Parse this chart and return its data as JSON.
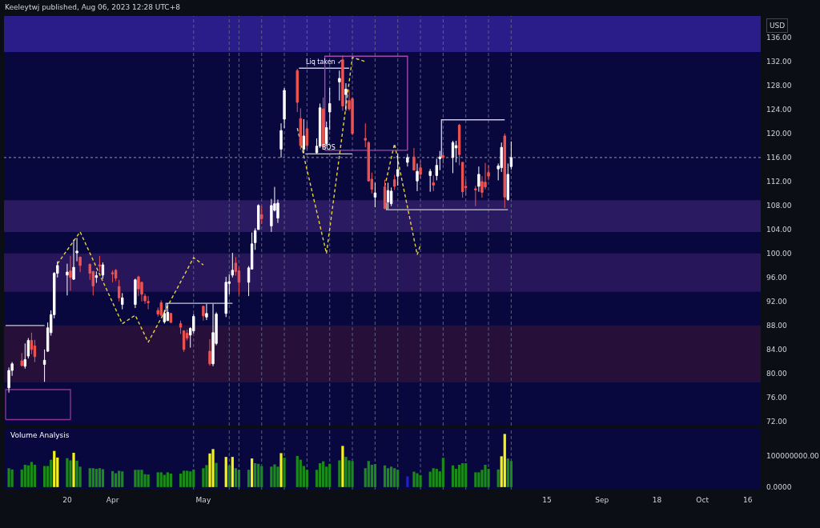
{
  "chart_data": [
    {
      "type": "candlestick",
      "x": [
        "2023-03-02",
        "2023-03-03",
        "2023-03-06",
        "2023-03-07",
        "2023-03-08",
        "2023-03-09",
        "2023-03-10",
        "2023-03-13",
        "2023-03-14",
        "2023-03-15",
        "2023-03-16",
        "2023-03-17",
        "2023-03-20",
        "2023-03-21",
        "2023-03-22",
        "2023-03-23",
        "2023-03-24",
        "2023-03-27",
        "2023-03-28",
        "2023-03-29",
        "2023-03-30",
        "2023-03-31",
        "2023-04-03",
        "2023-04-04",
        "2023-04-05",
        "2023-04-06",
        "2023-04-10",
        "2023-04-11",
        "2023-04-12",
        "2023-04-13",
        "2023-04-14",
        "2023-04-17",
        "2023-04-18",
        "2023-04-19",
        "2023-04-20",
        "2023-04-21",
        "2023-04-24",
        "2023-04-25",
        "2023-04-26",
        "2023-04-27",
        "2023-04-28",
        "2023-05-01",
        "2023-05-02",
        "2023-05-03",
        "2023-05-04",
        "2023-05-05",
        "2023-05-08",
        "2023-05-09",
        "2023-05-10",
        "2023-05-11",
        "2023-05-12",
        "2023-05-15",
        "2023-05-16",
        "2023-05-17",
        "2023-05-18",
        "2023-05-19",
        "2023-05-22",
        "2023-05-23",
        "2023-05-24",
        "2023-05-25",
        "2023-05-26",
        "2023-05-30",
        "2023-05-31",
        "2023-06-01",
        "2023-06-02",
        "2023-06-05",
        "2023-06-06",
        "2023-06-07",
        "2023-06-08",
        "2023-06-09",
        "2023-06-12",
        "2023-06-13",
        "2023-06-14",
        "2023-06-15",
        "2023-06-16",
        "2023-06-20",
        "2023-06-21",
        "2023-06-22",
        "2023-06-23",
        "2023-06-26",
        "2023-06-27",
        "2023-06-28",
        "2023-06-29",
        "2023-06-30",
        "2023-07-03",
        "2023-07-05",
        "2023-07-06",
        "2023-07-07",
        "2023-07-10",
        "2023-07-11",
        "2023-07-12",
        "2023-07-13",
        "2023-07-14",
        "2023-07-17",
        "2023-07-18",
        "2023-07-19",
        "2023-07-20",
        "2023-07-21",
        "2023-07-24",
        "2023-07-25",
        "2023-07-26",
        "2023-07-27",
        "2023-07-28",
        "2023-07-31",
        "2023-08-01",
        "2023-08-02",
        "2023-08-03",
        "2023-08-04"
      ],
      "ohlc": [
        [
          77.6,
          81.0,
          76.8,
          80.5
        ],
        [
          80.5,
          81.9,
          79.6,
          81.6
        ],
        [
          82.1,
          83.4,
          81.2,
          81.3
        ],
        [
          81.2,
          85.0,
          80.8,
          82.3
        ],
        [
          82.9,
          85.9,
          82.5,
          85.5
        ],
        [
          85.5,
          86.8,
          83.2,
          84.0
        ],
        [
          84.6,
          85.6,
          81.9,
          82.8
        ],
        [
          81.5,
          84.0,
          78.6,
          82.2
        ],
        [
          83.7,
          88.5,
          83.6,
          87.6
        ],
        [
          86.8,
          90.5,
          86.3,
          89.8
        ],
        [
          89.8,
          96.9,
          89.2,
          96.7
        ],
        [
          96.7,
          98.7,
          96.0,
          98.0
        ],
        [
          96.4,
          98.3,
          93.0,
          96.9
        ],
        [
          97.1,
          99.6,
          93.8,
          96.0
        ],
        [
          95.7,
          102.3,
          95.6,
          97.7
        ],
        [
          100.1,
          102.6,
          98.7,
          100.4
        ],
        [
          99.4,
          99.5,
          96.9,
          98.0
        ],
        [
          98.2,
          98.3,
          95.6,
          96.7
        ],
        [
          97.0,
          97.1,
          93.0,
          94.6
        ],
        [
          96.0,
          97.0,
          95.1,
          96.3
        ],
        [
          98.1,
          99.6,
          96.9,
          97.9
        ],
        [
          96.4,
          98.5,
          95.8,
          98.1
        ],
        [
          96.8,
          97.2,
          95.2,
          96.6
        ],
        [
          97.2,
          97.4,
          95.4,
          95.9
        ],
        [
          94.5,
          95.6,
          92.0,
          92.6
        ],
        [
          91.5,
          93.4,
          90.7,
          92.6
        ],
        [
          91.5,
          95.8,
          90.9,
          95.6
        ],
        [
          96.1,
          96.3,
          92.9,
          94.1
        ],
        [
          95.2,
          95.3,
          92.0,
          93.2
        ],
        [
          92.9,
          93.3,
          91.6,
          92.1
        ],
        [
          92.0,
          92.9,
          90.7,
          91.8
        ],
        [
          90.5,
          91.0,
          89.5,
          89.9
        ],
        [
          91.8,
          92.2,
          89.6,
          89.7
        ],
        [
          88.6,
          90.6,
          88.3,
          90.0
        ],
        [
          88.8,
          91.7,
          88.8,
          90.2
        ],
        [
          90.0,
          90.1,
          88.4,
          88.5
        ],
        [
          88.3,
          88.8,
          86.6,
          87.7
        ],
        [
          87.1,
          87.2,
          83.6,
          84.0
        ],
        [
          86.7,
          87.3,
          85.5,
          85.9
        ],
        [
          86.4,
          87.7,
          84.3,
          87.5
        ],
        [
          87.1,
          89.9,
          86.7,
          89.5
        ],
        [
          91.2,
          91.3,
          88.8,
          89.6
        ],
        [
          89.4,
          91.6,
          88.9,
          90.0
        ],
        [
          83.7,
          85.7,
          81.3,
          81.6
        ],
        [
          81.6,
          91.6,
          81.2,
          86.8
        ],
        [
          85.0,
          90.2,
          84.7,
          89.9
        ],
        [
          90.0,
          96.1,
          89.4,
          95.2
        ],
        [
          95.0,
          96.5,
          93.2,
          95.3
        ],
        [
          96.4,
          100.1,
          96.0,
          97.2
        ],
        [
          98.4,
          99.4,
          96.3,
          97.0
        ],
        [
          97.1,
          97.7,
          93.1,
          95.2
        ],
        [
          95.2,
          97.9,
          92.9,
          97.6
        ],
        [
          97.4,
          103.5,
          97.4,
          101.6
        ],
        [
          101.8,
          104.2,
          100.6,
          103.8
        ],
        [
          104.0,
          108.2,
          104.0,
          108.0
        ],
        [
          106.5,
          107.9,
          104.9,
          105.8
        ],
        [
          104.6,
          109.1,
          103.6,
          108.0
        ],
        [
          107.2,
          111.1,
          107.0,
          108.3
        ],
        [
          105.9,
          109.0,
          105.1,
          108.4
        ],
        [
          117.4,
          121.7,
          116.0,
          120.5
        ],
        [
          122.4,
          127.6,
          120.9,
          127.2
        ],
        [
          130.5,
          130.8,
          123.6,
          125.2
        ],
        [
          122.5,
          124.2,
          117.3,
          118.0
        ],
        [
          117.4,
          122.4,
          116.7,
          119.6
        ],
        [
          120.8,
          122.0,
          117.3,
          118.0
        ],
        [
          116.8,
          119.2,
          116.7,
          117.9
        ],
        [
          117.9,
          125.0,
          117.6,
          124.3
        ],
        [
          124.1,
          126.0,
          117.5,
          117.8
        ],
        [
          118.3,
          122.0,
          118.0,
          121.0
        ],
        [
          123.6,
          127.6,
          120.6,
          125.0
        ],
        [
          128.6,
          130.5,
          125.5,
          129.2
        ],
        [
          132.3,
          133.0,
          123.8,
          124.6
        ],
        [
          126.5,
          128.4,
          123.8,
          127.4
        ],
        [
          125.5,
          127.3,
          123.8,
          124.1
        ],
        [
          125.8,
          126.1,
          119.7,
          120.0
        ],
        [
          119.2,
          121.7,
          117.7,
          118.9
        ],
        [
          118.5,
          118.7,
          112.0,
          112.1
        ],
        [
          112.4,
          113.5,
          110.0,
          110.7
        ],
        [
          109.4,
          111.8,
          107.7,
          110.1
        ],
        [
          111.1,
          112.3,
          107.4,
          107.5
        ],
        [
          108.6,
          111.8,
          107.4,
          110.5
        ],
        [
          108.3,
          111.0,
          107.9,
          110.4
        ],
        [
          112.3,
          113.1,
          110.6,
          111.2
        ],
        [
          112.9,
          116.7,
          111.3,
          114.0
        ],
        [
          115.2,
          116.6,
          114.5,
          116.0
        ],
        [
          116.1,
          117.6,
          113.9,
          113.9
        ],
        [
          112.1,
          115.0,
          110.4,
          113.7
        ],
        [
          114.3,
          115.5,
          112.5,
          113.2
        ],
        [
          113.0,
          114.1,
          110.3,
          113.7
        ],
        [
          111.8,
          113.0,
          110.4,
          111.4
        ],
        [
          113.0,
          115.8,
          112.2,
          114.7
        ],
        [
          115.8,
          117.1,
          113.9,
          116.1
        ],
        [
          116.3,
          117.0,
          115.0,
          116.0
        ],
        [
          116.0,
          118.8,
          113.4,
          118.5
        ],
        [
          117.6,
          118.8,
          115.2,
          118.0
        ],
        [
          121.4,
          121.6,
          114.7,
          116.5
        ],
        [
          115.2,
          115.3,
          109.3,
          110.3
        ],
        [
          111.2,
          112.4,
          109.7,
          111.0
        ],
        [
          110.8,
          111.3,
          107.9,
          110.6
        ],
        [
          111.2,
          114.5,
          110.3,
          113.2
        ],
        [
          112.0,
          112.9,
          109.3,
          110.2
        ],
        [
          111.9,
          115.1,
          110.7,
          111.1
        ],
        [
          113.5,
          114.7,
          112.2,
          112.9
        ],
        [
          114.1,
          115.0,
          112.2,
          114.6
        ],
        [
          114.3,
          118.5,
          113.6,
          117.7
        ],
        [
          119.6,
          120.0,
          107.6,
          109.4
        ],
        [
          109.0,
          115.0,
          108.8,
          113.2
        ],
        [
          114.5,
          118.7,
          114.0,
          116.0
        ]
      ],
      "colors": [
        "#ffffff",
        "#ffffff",
        "#ef5350",
        "#ffffff",
        "#ffffff",
        "#ef5350",
        "#ef5350",
        "#ffffff",
        "#ffffff",
        "#ffffff",
        "#ffffff",
        "#ffffff",
        "#ffffff",
        "#ef5350",
        "#ffffff",
        "#ffffff",
        "#ef5350",
        "#ef5350",
        "#ef5350",
        "#ffffff",
        "#ef5350",
        "#ffffff",
        "#ef5350",
        "#ef5350",
        "#ef5350",
        "#ffffff",
        "#ffffff",
        "#ef5350",
        "#ef5350",
        "#ef5350",
        "#ef5350",
        "#ef5350",
        "#ef5350",
        "#ffffff",
        "#ffffff",
        "#ef5350",
        "#ef5350",
        "#ef5350",
        "#ef5350",
        "#ffffff",
        "#ffffff",
        "#ef5350",
        "#ffffff",
        "#ef5350",
        "#ffffff",
        "#ffffff",
        "#ffffff",
        "#ffffff",
        "#ffffff",
        "#ef5350",
        "#ef5350",
        "#ffffff",
        "#ffffff",
        "#ffffff",
        "#ffffff",
        "#ef5350",
        "#ffffff",
        "#ffffff",
        "#ffffff",
        "#ffffff",
        "#ffffff",
        "#ef5350",
        "#ef5350",
        "#ffffff",
        "#ef5350",
        "#ffffff",
        "#ffffff",
        "#ef5350",
        "#ffffff",
        "#ffffff",
        "#ffffff",
        "#ef5350",
        "#ffffff",
        "#ef5350",
        "#ef5350",
        "#ef5350",
        "#ef5350",
        "#ef5350",
        "#ffffff",
        "#ef5350",
        "#ffffff",
        "#ffffff",
        "#ef5350",
        "#ffffff",
        "#ffffff",
        "#ef5350",
        "#ffffff",
        "#ef5350",
        "#ffffff",
        "#ef5350",
        "#ffffff",
        "#ffffff",
        "#ef5350",
        "#ffffff",
        "#ffffff",
        "#ef5350",
        "#ef5350",
        "#ef5350",
        "#ef5350",
        "#ffffff",
        "#ef5350",
        "#ef5350",
        "#ef5350",
        "#ffffff",
        "#ffffff",
        "#ef5350",
        "#ffffff",
        "#ffffff"
      ],
      "xlim": [
        "2023-02-28T12:00",
        "2023-10-20"
      ],
      "ylim": [
        71.3,
        139.6
      ],
      "yticks": [
        {
          "value": 72,
          "label": "72.00"
        },
        {
          "value": 76,
          "label": "76.00"
        },
        {
          "value": 80,
          "label": "80.00"
        },
        {
          "value": 84,
          "label": "84.00"
        },
        {
          "value": 88,
          "label": "88.00"
        },
        {
          "value": 92,
          "label": "92.00"
        },
        {
          "value": 96,
          "label": "96.00"
        },
        {
          "value": 100,
          "label": "100.00"
        },
        {
          "value": 104,
          "label": "104.00"
        },
        {
          "value": 108,
          "label": "108.00"
        },
        {
          "value": 112,
          "label": "112.00"
        },
        {
          "value": 116,
          "label": "116.00"
        },
        {
          "value": 120,
          "label": "120.00"
        },
        {
          "value": 124,
          "label": "124.00"
        },
        {
          "value": 128,
          "label": "128.00"
        },
        {
          "value": 132,
          "label": "132.00"
        },
        {
          "value": 136,
          "label": "136.00"
        }
      ],
      "ylabel": "USD",
      "tick_labels": "y",
      "annotations": [
        "Keeleytwj published, Aug 06, 2023 12:28 UTC+8"
      ],
      "bands": [
        {
          "axis": "y",
          "from": 133.6,
          "to": 139.6,
          "color": "#2a1d8a"
        },
        {
          "axis": "y",
          "from": 103.6,
          "to": 108.9,
          "color": "#2a1a62"
        },
        {
          "axis": "y",
          "from": 93.6,
          "to": 100.0,
          "color": "#28165a"
        },
        {
          "axis": "y",
          "from": 78.5,
          "to": 88.0,
          "color": "#26103a"
        }
      ],
      "ref_lines": [
        {
          "axis": "x",
          "value": "2023-04-28",
          "color": "#5d6180",
          "line_style": "dashed"
        },
        {
          "axis": "x",
          "value": "2023-05-09",
          "color": "#5d6180",
          "line_style": "dashed"
        },
        {
          "axis": "x",
          "value": "2023-05-12",
          "color": "#5d6180",
          "line_style": "dashed"
        },
        {
          "axis": "x",
          "value": "2023-05-19",
          "color": "#5d6180",
          "line_style": "dashed"
        },
        {
          "axis": "x",
          "value": "2023-05-26",
          "color": "#5d6180",
          "line_style": "dashed"
        },
        {
          "axis": "x",
          "value": "2023-06-02",
          "color": "#5d6180",
          "line_style": "dashed"
        },
        {
          "axis": "x",
          "value": "2023-06-09",
          "color": "#5d6180",
          "line_style": "dashed"
        },
        {
          "axis": "x",
          "value": "2023-06-16",
          "color": "#5d6180",
          "line_style": "dashed"
        },
        {
          "axis": "x",
          "value": "2023-06-23",
          "color": "#5d6180",
          "line_style": "dashed"
        },
        {
          "axis": "x",
          "value": "2023-06-30",
          "color": "#5d6180",
          "line_style": "dashed"
        },
        {
          "axis": "x",
          "value": "2023-07-07",
          "color": "#5d6180",
          "line_style": "dashed"
        },
        {
          "axis": "x",
          "value": "2023-07-14",
          "color": "#5d6180",
          "line_style": "dashed"
        },
        {
          "axis": "x",
          "value": "2023-07-21",
          "color": "#5d6180",
          "line_style": "dashed"
        },
        {
          "axis": "x",
          "value": "2023-07-28",
          "color": "#5d6180",
          "line_style": "dashed"
        },
        {
          "axis": "x",
          "value": "2023-08-04",
          "color": "#5d6180",
          "line_style": "dashed"
        },
        {
          "axis": "y",
          "value": 116.0,
          "color": "#9598a1",
          "line_style": "dotted"
        }
      ],
      "series": [
        {
          "type": "line",
          "color": "#e6d43c",
          "line_style": "dashed",
          "x": [
            "2023-03-17",
            "2023-03-24",
            "2023-04-06",
            "2023-04-10",
            "2023-04-14",
            "2023-04-28",
            "2023-05-01"
          ],
          "values": [
            98.3,
            103.6,
            88.3,
            89.7,
            85.2,
            99.3,
            98.1
          ]
        },
        {
          "type": "line",
          "color": "#e6d43c",
          "line_style": "dashed",
          "x": [
            "2023-05-30",
            "2023-06-08",
            "2023-06-16",
            "2023-06-20"
          ],
          "values": [
            120.9,
            100.0,
            132.7,
            132.0
          ]
        },
        {
          "type": "line",
          "color": "#e6d43c",
          "line_style": "dashed",
          "x": [
            "2023-06-26",
            "2023-06-29",
            "2023-07-06",
            "2023-07-07"
          ],
          "values": [
            111.2,
            118.3,
            99.8,
            101.4
          ]
        },
        {
          "type": "line",
          "name": "Liq taken ✓",
          "color": "#c8c8d8",
          "line_style": "solid",
          "x": [
            "2023-05-30T12:00",
            "2023-06-15"
          ],
          "values": [
            130.9,
            130.9
          ]
        },
        {
          "type": "line",
          "name": "BOS",
          "color": "#c8c8d8",
          "line_style": "solid",
          "x": [
            "2023-06-01T12:00",
            "2023-06-16"
          ],
          "values": [
            116.6,
            116.6
          ]
        },
        {
          "type": "line",
          "color": "#c8c8d8",
          "line_style": "solid",
          "x": [
            "2023-07-13T12:00",
            "2023-07-13T12:00",
            "2023-08-02"
          ],
          "values": [
            116.0,
            122.3,
            122.3
          ]
        },
        {
          "type": "line",
          "color": "#c8c8d8",
          "line_style": "solid",
          "x": [
            "2023-06-26T12:00",
            "2023-06-26T12:00",
            "2023-08-03"
          ],
          "values": [
            108.5,
            107.3,
            107.3
          ]
        },
        {
          "type": "line",
          "color": "#c8c8d8",
          "line_style": "solid",
          "x": [
            "2023-03-01",
            "2023-03-13"
          ],
          "values": [
            88.0,
            88.0
          ]
        },
        {
          "type": "line",
          "color": "#c8c8d8",
          "line_style": "solid",
          "x": [
            "2023-04-19T12:00",
            "2023-04-19T12:00",
            "2023-05-10"
          ],
          "values": [
            90.3,
            91.7,
            91.7
          ]
        },
        {
          "type": "line",
          "color": "#a346b0",
          "line_style": "solid",
          "x": [
            "2023-06-07T12:00",
            "2023-06-07T12:00",
            "2023-07-03",
            "2023-07-03"
          ],
          "values": [
            117.2,
            132.9,
            132.9,
            117.2
          ]
        },
        {
          "type": "line",
          "color": "#a346b0",
          "line_style": "solid",
          "x": [
            "2023-06-07T12:00",
            "2023-07-03"
          ],
          "values": [
            117.2,
            117.2
          ]
        },
        {
          "type": "line",
          "color": "#8a3590",
          "line_style": "solid",
          "x": [
            "2023-03-01",
            "2023-03-01",
            "2023-03-21",
            "2023-03-21"
          ],
          "values": [
            72.3,
            77.3,
            77.3,
            72.3
          ]
        },
        {
          "type": "line",
          "color": "#8a3590",
          "line_style": "solid",
          "x": [
            "2023-03-01",
            "2023-03-21"
          ],
          "values": [
            72.3,
            72.3
          ]
        }
      ]
    },
    {
      "type": "bar",
      "title": "Volume Analysis",
      "x": [
        "2023-03-02",
        "2023-03-03",
        "2023-03-06",
        "2023-03-07",
        "2023-03-08",
        "2023-03-09",
        "2023-03-10",
        "2023-03-13",
        "2023-03-14",
        "2023-03-15",
        "2023-03-16",
        "2023-03-17",
        "2023-03-20",
        "2023-03-21",
        "2023-03-22",
        "2023-03-23",
        "2023-03-24",
        "2023-03-27",
        "2023-03-28",
        "2023-03-29",
        "2023-03-30",
        "2023-03-31",
        "2023-04-03",
        "2023-04-04",
        "2023-04-05",
        "2023-04-06",
        "2023-04-10",
        "2023-04-11",
        "2023-04-12",
        "2023-04-13",
        "2023-04-14",
        "2023-04-17",
        "2023-04-18",
        "2023-04-19",
        "2023-04-20",
        "2023-04-21",
        "2023-04-24",
        "2023-04-25",
        "2023-04-26",
        "2023-04-27",
        "2023-04-28",
        "2023-05-01",
        "2023-05-02",
        "2023-05-03",
        "2023-05-04",
        "2023-05-05",
        "2023-05-08",
        "2023-05-09",
        "2023-05-10",
        "2023-05-11",
        "2023-05-12",
        "2023-05-15",
        "2023-05-16",
        "2023-05-17",
        "2023-05-18",
        "2023-05-19",
        "2023-05-22",
        "2023-05-23",
        "2023-05-24",
        "2023-05-25",
        "2023-05-26",
        "2023-05-30",
        "2023-05-31",
        "2023-06-01",
        "2023-06-02",
        "2023-06-05",
        "2023-06-06",
        "2023-06-07",
        "2023-06-08",
        "2023-06-09",
        "2023-06-12",
        "2023-06-13",
        "2023-06-14",
        "2023-06-15",
        "2023-06-16",
        "2023-06-20",
        "2023-06-21",
        "2023-06-22",
        "2023-06-23",
        "2023-06-26",
        "2023-06-27",
        "2023-06-28",
        "2023-06-29",
        "2023-06-30",
        "2023-07-03",
        "2023-07-05",
        "2023-07-06",
        "2023-07-07",
        "2023-07-10",
        "2023-07-11",
        "2023-07-12",
        "2023-07-13",
        "2023-07-14",
        "2023-07-17",
        "2023-07-18",
        "2023-07-19",
        "2023-07-20",
        "2023-07-21",
        "2023-07-24",
        "2023-07-25",
        "2023-07-26",
        "2023-07-27",
        "2023-07-28",
        "2023-07-31",
        "2023-08-01",
        "2023-08-02",
        "2023-08-03",
        "2023-08-04"
      ],
      "values": [
        60000000,
        56000000,
        56000000,
        71000000,
        69000000,
        80000000,
        71000000,
        67000000,
        67000000,
        87000000,
        115000000,
        94000000,
        92000000,
        85000000,
        109000000,
        84000000,
        65000000,
        60000000,
        60000000,
        58000000,
        60000000,
        57000000,
        51000000,
        44000000,
        52000000,
        50000000,
        55000000,
        55000000,
        55000000,
        41000000,
        40000000,
        47000000,
        47000000,
        39000000,
        47000000,
        43000000,
        43000000,
        52000000,
        52000000,
        50000000,
        56000000,
        60000000,
        70000000,
        107000000,
        121000000,
        77000000,
        96000000,
        69000000,
        96000000,
        60000000,
        55000000,
        55000000,
        91000000,
        76000000,
        74000000,
        67000000,
        65000000,
        72000000,
        65000000,
        108000000,
        93000000,
        99000000,
        87000000,
        67000000,
        55000000,
        55000000,
        76000000,
        82000000,
        65000000,
        74000000,
        85000000,
        131000000,
        96000000,
        85000000,
        83000000,
        60000000,
        83000000,
        71000000,
        73000000,
        69000000,
        60000000,
        65000000,
        60000000,
        55000000,
        34000000,
        49000000,
        44000000,
        38000000,
        49000000,
        60000000,
        58000000,
        50000000,
        93000000,
        69000000,
        58000000,
        71000000,
        76000000,
        76000000,
        47000000,
        47000000,
        55000000,
        71000000,
        58000000,
        56000000,
        98000000,
        169000000,
        91000000,
        83000000
      ],
      "colors": [
        "#1b8a1b",
        "#1b8a1b",
        "#1b8a1b",
        "#1b8a1b",
        "#1b8a1b",
        "#1b8a1b",
        "#1b8a1b",
        "#1b8a1b",
        "#1b8a1b",
        "#1b8a1b",
        "#f2f21a",
        "#f2f21a",
        "#1b8a1b",
        "#1b8a1b",
        "#f2f21a",
        "#1b8a1b",
        "#1b8a1b",
        "#1b8a1b",
        "#1b8a1b",
        "#1b8a1b",
        "#1b8a1b",
        "#1b8a1b",
        "#1b8a1b",
        "#1b8a1b",
        "#1b8a1b",
        "#1b8a1b",
        "#1b8a1b",
        "#1b8a1b",
        "#1b8a1b",
        "#1b8a1b",
        "#1b8a1b",
        "#1b8a1b",
        "#1b8a1b",
        "#1b8a1b",
        "#1b8a1b",
        "#1b8a1b",
        "#1b8a1b",
        "#1b8a1b",
        "#1b8a1b",
        "#1b8a1b",
        "#1b8a1b",
        "#1b8a1b",
        "#1b8a1b",
        "#f2f21a",
        "#f2f21a",
        "#1b8a1b",
        "#f2f21a",
        "#1b8a1b",
        "#f2f21a",
        "#1b8a1b",
        "#1b8a1b",
        "#1b8a1b",
        "#f2f21a",
        "#1b8a1b",
        "#1b8a1b",
        "#1b8a1b",
        "#1b8a1b",
        "#1b8a1b",
        "#1b8a1b",
        "#f2f21a",
        "#1b8a1b",
        "#1b8a1b",
        "#1b8a1b",
        "#1b8a1b",
        "#1b8a1b",
        "#1b8a1b",
        "#1b8a1b",
        "#1b8a1b",
        "#1b8a1b",
        "#1b8a1b",
        "#1b8a1b",
        "#f2f21a",
        "#1b8a1b",
        "#1b8a1b",
        "#1b8a1b",
        "#1b8a1b",
        "#1b8a1b",
        "#1b8a1b",
        "#1b8a1b",
        "#1b8a1b",
        "#1b8a1b",
        "#1b8a1b",
        "#1b8a1b",
        "#1b8a1b",
        "#1f1fd6",
        "#1b8a1b",
        "#1b8a1b",
        "#1b8a1b",
        "#1b8a1b",
        "#1b8a1b",
        "#1b8a1b",
        "#1b8a1b",
        "#1b8a1b",
        "#1b8a1b",
        "#1b8a1b",
        "#1b8a1b",
        "#1b8a1b",
        "#1b8a1b",
        "#1b8a1b",
        "#1b8a1b",
        "#1b8a1b",
        "#1b8a1b",
        "#1b8a1b",
        "#1b8a1b",
        "#f2f21a",
        "#f2f21a",
        "#1b8a1b",
        "#1b8a1b"
      ],
      "xlim": [
        "2023-02-28T12:00",
        "2023-10-20"
      ],
      "xticks": [
        {
          "value": "2023-03-20",
          "label": "20"
        },
        {
          "value": "2023-04-03",
          "label": "Apr"
        },
        {
          "value": "2023-05-01",
          "label": "May"
        },
        {
          "value": "2023-08-15",
          "label": "15"
        },
        {
          "value": "2023-09-01",
          "label": "Sep"
        },
        {
          "value": "2023-09-18",
          "label": "18"
        },
        {
          "value": "2023-10-02",
          "label": "Oct"
        },
        {
          "value": "2023-10-16",
          "label": "16"
        }
      ],
      "ylim": [
        -8000000,
        188000000
      ],
      "yticks": [
        {
          "value": 0,
          "label": "0.0000"
        },
        {
          "value": 100000000,
          "label": "100000000.00"
        }
      ],
      "ref_lines": [
        {
          "axis": "x",
          "value": "2023-04-28",
          "color": "#5d6180",
          "line_style": "dashed"
        },
        {
          "axis": "x",
          "value": "2023-05-09",
          "color": "#5d6180",
          "line_style": "dashed"
        },
        {
          "axis": "x",
          "value": "2023-05-12",
          "color": "#5d6180",
          "line_style": "dashed"
        },
        {
          "axis": "x",
          "value": "2023-05-19",
          "color": "#5d6180",
          "line_style": "dashed"
        },
        {
          "axis": "x",
          "value": "2023-05-26",
          "color": "#5d6180",
          "line_style": "dashed"
        },
        {
          "axis": "x",
          "value": "2023-06-02",
          "color": "#5d6180",
          "line_style": "dashed"
        },
        {
          "axis": "x",
          "value": "2023-06-09",
          "color": "#5d6180",
          "line_style": "dashed"
        },
        {
          "axis": "x",
          "value": "2023-06-16",
          "color": "#5d6180",
          "line_style": "dashed"
        },
        {
          "axis": "x",
          "value": "2023-06-23",
          "color": "#5d6180",
          "line_style": "dashed"
        },
        {
          "axis": "x",
          "value": "2023-06-30",
          "color": "#5d6180",
          "line_style": "dashed"
        },
        {
          "axis": "x",
          "value": "2023-07-07",
          "color": "#5d6180",
          "line_style": "dashed"
        },
        {
          "axis": "x",
          "value": "2023-07-14",
          "color": "#5d6180",
          "line_style": "dashed"
        },
        {
          "axis": "x",
          "value": "2023-07-21",
          "color": "#5d6180",
          "line_style": "dashed"
        },
        {
          "axis": "x",
          "value": "2023-07-28",
          "color": "#5d6180",
          "line_style": "dashed"
        },
        {
          "axis": "x",
          "value": "2023-08-04",
          "color": "#5d6180",
          "line_style": "dashed"
        }
      ]
    }
  ]
}
